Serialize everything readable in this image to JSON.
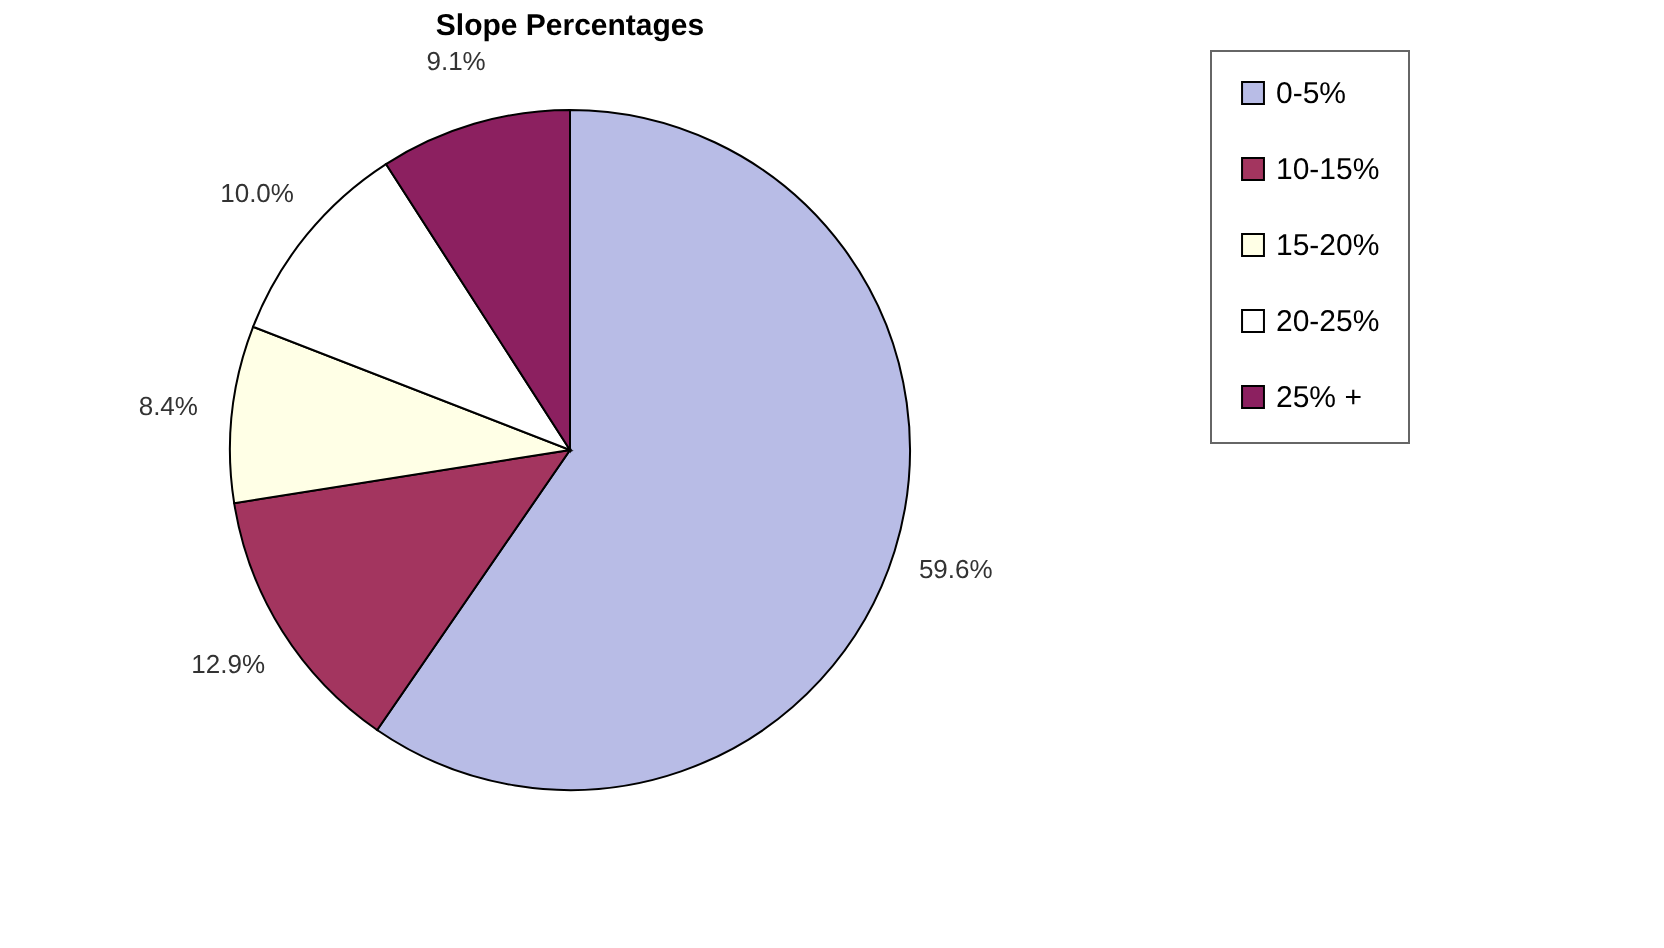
{
  "chart_data": {
    "type": "pie",
    "title": "Slope Percentages",
    "categories": [
      "0-5%",
      "10-15%",
      "15-20%",
      "20-25%",
      "25% +"
    ],
    "values": [
      59.6,
      12.9,
      8.4,
      10.0,
      9.1
    ],
    "value_labels": [
      "59.6%",
      "12.9%",
      "8.4%",
      "10.0%",
      "9.1%"
    ],
    "colors": [
      "#b8bce6",
      "#a3355f",
      "#ffffe6",
      "#ffffff",
      "#8c2060"
    ],
    "legend": "right"
  }
}
